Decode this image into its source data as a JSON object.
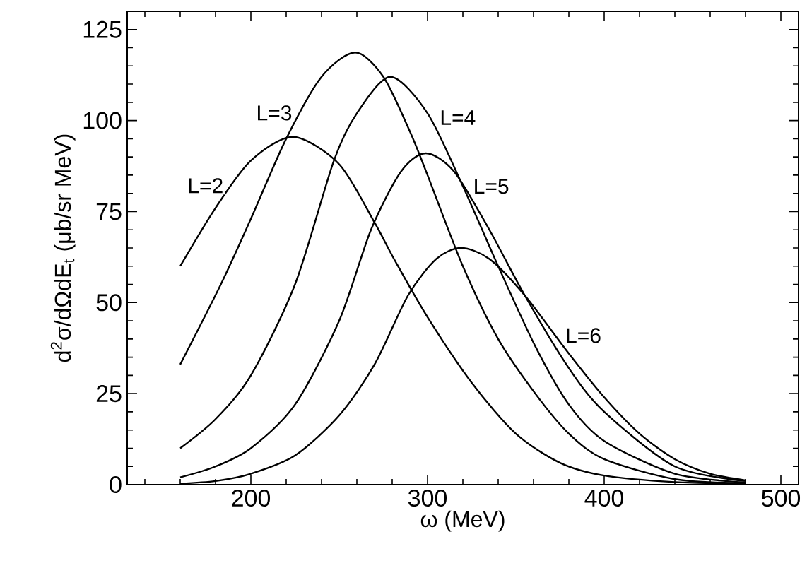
{
  "chart_data": {
    "type": "line",
    "xlabel": "ω  (MeV)",
    "ylabel": "d$^{2}$σ/dΩdE$_{t}$ (μb/sr MeV)",
    "xlim": [
      130,
      510
    ],
    "ylim": [
      0,
      130
    ],
    "xticks": [
      {
        "value": 140,
        "label": null
      },
      {
        "value": 160,
        "label": null
      },
      {
        "value": 180,
        "label": null
      },
      200,
      {
        "value": 220,
        "label": null
      },
      {
        "value": 240,
        "label": null
      },
      {
        "value": 260,
        "label": null
      },
      {
        "value": 280,
        "label": null
      },
      300,
      {
        "value": 320,
        "label": null
      },
      {
        "value": 340,
        "label": null
      },
      {
        "value": 360,
        "label": null
      },
      {
        "value": 380,
        "label": null
      },
      400,
      {
        "value": 420,
        "label": null
      },
      {
        "value": 440,
        "label": null
      },
      {
        "value": 460,
        "label": null
      },
      {
        "value": 480,
        "label": null
      },
      500
    ],
    "yticks": [
      0,
      {
        "value": 5,
        "label": null
      },
      {
        "value": 10,
        "label": null
      },
      {
        "value": 15,
        "label": null
      },
      {
        "value": 20,
        "label": null
      },
      25,
      {
        "value": 30,
        "label": null
      },
      {
        "value": 35,
        "label": null
      },
      {
        "value": 40,
        "label": null
      },
      {
        "value": 45,
        "label": null
      },
      50,
      {
        "value": 55,
        "label": null
      },
      {
        "value": 60,
        "label": null
      },
      {
        "value": 65,
        "label": null
      },
      {
        "value": 70,
        "label": null
      },
      75,
      {
        "value": 80,
        "label": null
      },
      {
        "value": 85,
        "label": null
      },
      {
        "value": 90,
        "label": null
      },
      {
        "value": 95,
        "label": null
      },
      100,
      {
        "value": 105,
        "label": null
      },
      {
        "value": 110,
        "label": null
      },
      {
        "value": 115,
        "label": null
      },
      {
        "value": 120,
        "label": null
      },
      125,
      {
        "value": 130,
        "label": null
      }
    ],
    "grid": false,
    "legend": false,
    "marker": "none",
    "line_style": "solid",
    "series": [
      {
        "name": "L=2",
        "color": "#000000",
        "x": [
          160,
          180,
          200,
          224,
          250,
          270,
          281,
          300,
          325,
          350,
          375,
          400,
          440,
          480
        ],
        "values": [
          60,
          76,
          89,
          95.5,
          88,
          72,
          62,
          46,
          28,
          14,
          6,
          2.5,
          0.7,
          0.2
        ]
      },
      {
        "name": "L=3",
        "color": "#000000",
        "x": [
          160,
          183,
          200,
          220,
          240,
          259,
          275,
          290,
          300,
          320,
          340,
          361,
          380,
          400,
          440,
          480
        ],
        "values": [
          33,
          55,
          73,
          95,
          112,
          118.7,
          112,
          97,
          85,
          60,
          40,
          25,
          14,
          7,
          1.5,
          0.4
        ]
      },
      {
        "name": "L=4",
        "color": "#000000",
        "x": [
          160,
          180,
          200,
          225,
          247,
          260,
          279,
          300,
          320,
          340,
          361,
          380,
          400,
          440,
          480
        ],
        "values": [
          10,
          18,
          30,
          55,
          89,
          102,
          112,
          102,
          82,
          60,
          38,
          22,
          12,
          3,
          0.6
        ]
      },
      {
        "name": "L=5",
        "color": "#000000",
        "x": [
          160,
          180,
          200,
          225,
          250,
          268,
          285,
          299,
          315,
          335,
          355,
          380,
          400,
          440,
          480
        ],
        "values": [
          2,
          5,
          10,
          22,
          45,
          70,
          86,
          91,
          86,
          70,
          52,
          32,
          20,
          5,
          1
        ]
      },
      {
        "name": "L=6",
        "color": "#000000",
        "x": [
          160,
          180,
          200,
          225,
          250,
          270,
          289,
          305,
          319,
          335,
          355,
          380,
          400,
          420,
          440,
          460,
          480
        ],
        "values": [
          0.3,
          1,
          3,
          8,
          19,
          33,
          52,
          62,
          65,
          62,
          52,
          36,
          24,
          14,
          7,
          3,
          1.2
        ]
      }
    ]
  }
}
